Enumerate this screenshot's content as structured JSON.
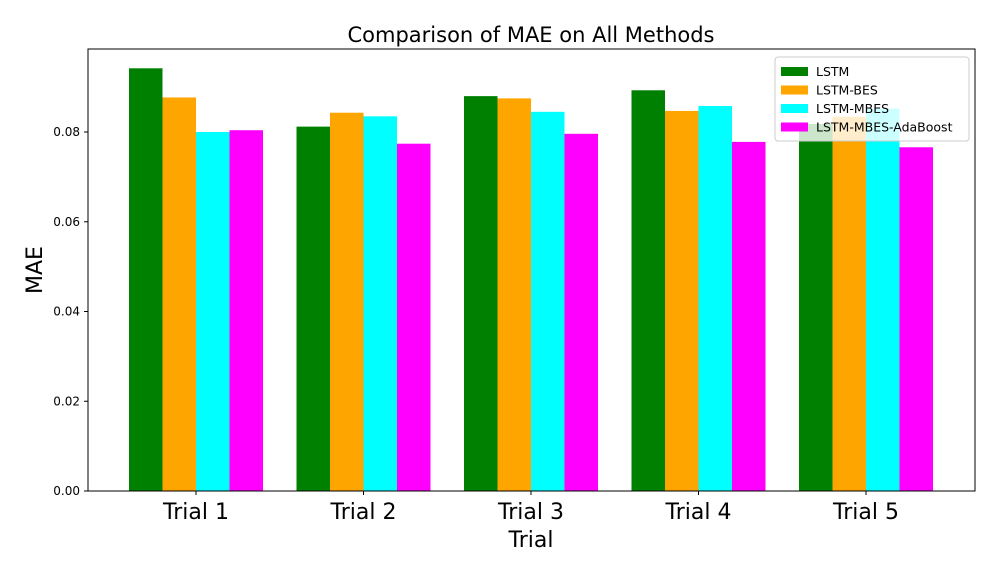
{
  "chart_data": {
    "type": "bar",
    "title": "Comparison of MAE on All Methods",
    "xlabel": "Trial",
    "ylabel": "MAE",
    "categories": [
      "Trial 1",
      "Trial 2",
      "Trial 3",
      "Trial 4",
      "Trial 5"
    ],
    "ylim": [
      0,
      0.0985
    ],
    "yticks": [
      "0.00",
      "0.02",
      "0.04",
      "0.06",
      "0.08"
    ],
    "grid": false,
    "legend_position": "top-right",
    "series": [
      {
        "name": "LSTM",
        "color": "#008000",
        "values": [
          0.0942,
          0.0812,
          0.088,
          0.0893,
          0.0818
        ]
      },
      {
        "name": "LSTM-BES",
        "color": "#ffa500",
        "values": [
          0.0877,
          0.0843,
          0.0875,
          0.0847,
          0.0834
        ]
      },
      {
        "name": "LSTM-MBES",
        "color": "#00ffff",
        "values": [
          0.08,
          0.0835,
          0.0845,
          0.0858,
          0.0852
        ]
      },
      {
        "name": "LSTM-MBES-AdaBoost",
        "color": "#ff00ff",
        "values": [
          0.0804,
          0.0774,
          0.0796,
          0.0778,
          0.0766
        ]
      }
    ]
  }
}
